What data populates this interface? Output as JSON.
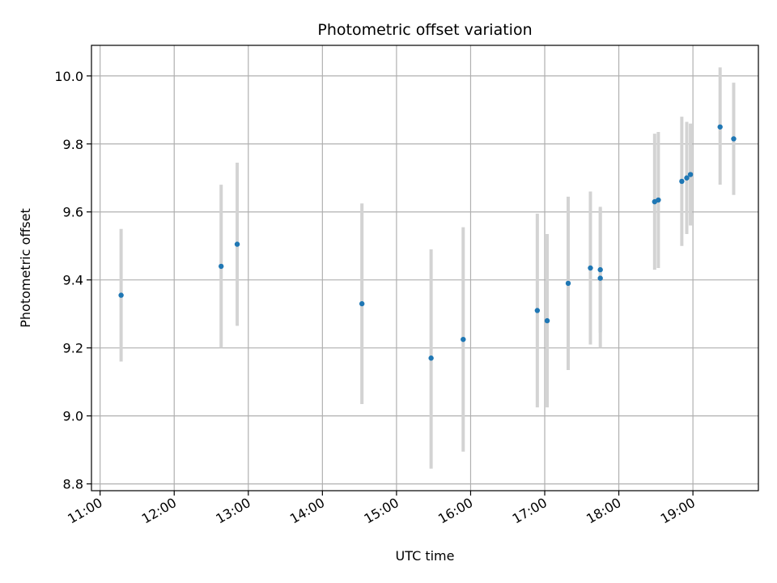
{
  "chart_data": {
    "type": "scatter",
    "title": "Photometric offset variation",
    "xlabel": "UTC time",
    "ylabel": "Photometric offset",
    "x_tick_labels": [
      "11:00",
      "12:00",
      "13:00",
      "14:00",
      "15:00",
      "16:00",
      "17:00",
      "18:00",
      "19:00"
    ],
    "y_ticks": [
      8.8,
      9.0,
      9.2,
      9.4,
      9.6,
      9.8,
      10.0
    ],
    "y_tick_labels": [
      "8.8",
      "9.0",
      "9.2",
      "9.4",
      "9.6",
      "9.8",
      "10.0"
    ],
    "xlim": [
      "10:53",
      "19:53"
    ],
    "ylim": [
      8.78,
      10.09
    ],
    "grid": true,
    "colors": {
      "point": "#1f77b4",
      "errorbar": "#d3d3d3",
      "grid": "#b0b0b0"
    },
    "series": [
      {
        "points": [
          {
            "x": "11:17",
            "y": 9.355,
            "ylo": 9.16,
            "yhi": 9.55
          },
          {
            "x": "12:38",
            "y": 9.44,
            "ylo": 9.2,
            "yhi": 9.68
          },
          {
            "x": "12:51",
            "y": 9.505,
            "ylo": 9.265,
            "yhi": 9.745
          },
          {
            "x": "14:32",
            "y": 9.33,
            "ylo": 9.035,
            "yhi": 9.625
          },
          {
            "x": "15:28",
            "y": 9.17,
            "ylo": 8.845,
            "yhi": 9.49
          },
          {
            "x": "15:54",
            "y": 9.225,
            "ylo": 8.895,
            "yhi": 9.555
          },
          {
            "x": "16:54",
            "y": 9.31,
            "ylo": 9.025,
            "yhi": 9.595
          },
          {
            "x": "17:02",
            "y": 9.28,
            "ylo": 9.025,
            "yhi": 9.535
          },
          {
            "x": "17:19",
            "y": 9.39,
            "ylo": 9.135,
            "yhi": 9.645
          },
          {
            "x": "17:37",
            "y": 9.435,
            "ylo": 9.21,
            "yhi": 9.66
          },
          {
            "x": "17:45",
            "y": 9.43,
            "ylo": 9.245,
            "yhi": 9.615
          },
          {
            "x": "17:45",
            "y": 9.405,
            "ylo": 9.2,
            "yhi": 9.61
          },
          {
            "x": "18:29",
            "y": 9.63,
            "ylo": 9.43,
            "yhi": 9.83
          },
          {
            "x": "18:32",
            "y": 9.635,
            "ylo": 9.435,
            "yhi": 9.835
          },
          {
            "x": "18:51",
            "y": 9.69,
            "ylo": 9.5,
            "yhi": 9.88
          },
          {
            "x": "18:55",
            "y": 9.7,
            "ylo": 9.535,
            "yhi": 9.865
          },
          {
            "x": "18:58",
            "y": 9.71,
            "ylo": 9.56,
            "yhi": 9.86
          },
          {
            "x": "19:22",
            "y": 9.85,
            "ylo": 9.68,
            "yhi": 10.025
          },
          {
            "x": "19:33",
            "y": 9.815,
            "ylo": 9.65,
            "yhi": 9.98
          }
        ]
      }
    ]
  }
}
